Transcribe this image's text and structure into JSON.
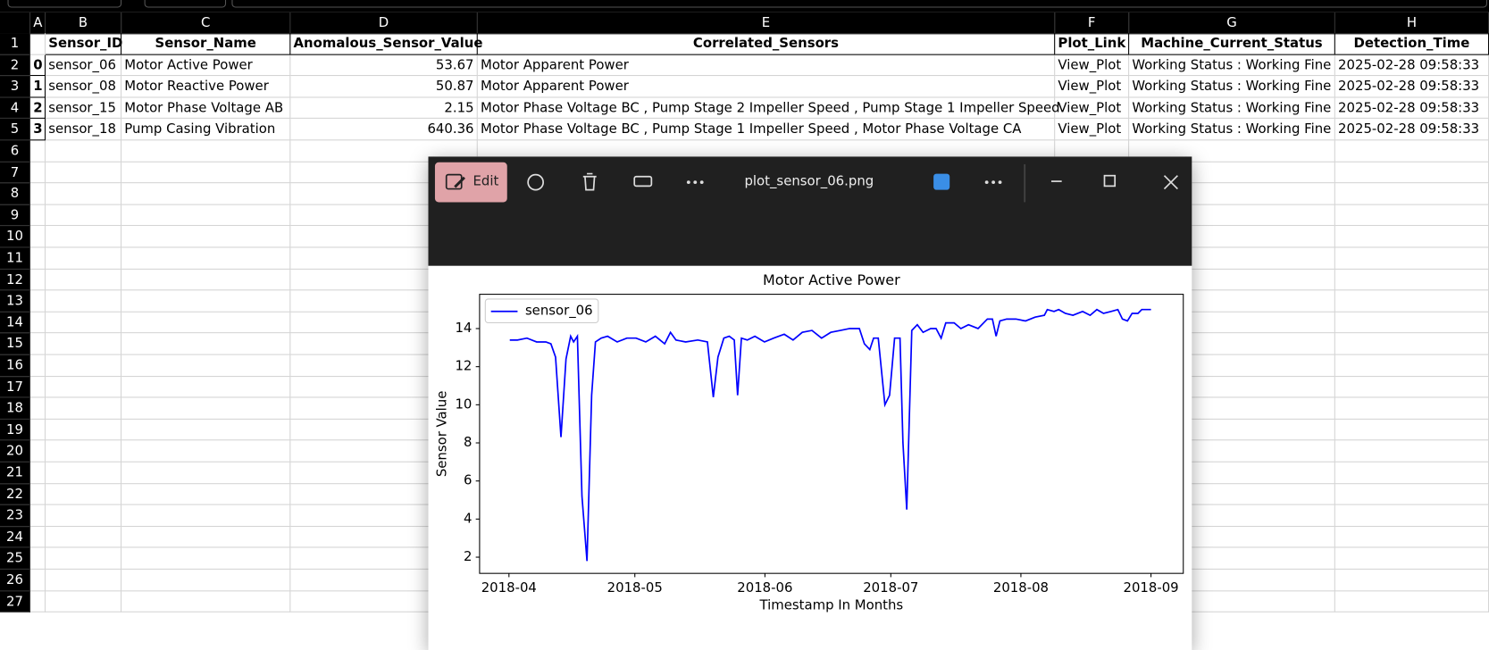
{
  "spreadsheet": {
    "columns": [
      "A",
      "B",
      "C",
      "D",
      "E",
      "F",
      "G",
      "H"
    ],
    "row_numbers": [
      1,
      2,
      3,
      4,
      5,
      6,
      7,
      8,
      9,
      10,
      11,
      12,
      13,
      14,
      15,
      16,
      17,
      18,
      19,
      20,
      21,
      22,
      23,
      24,
      25,
      26,
      27
    ],
    "header": [
      "Sensor_ID",
      "Sensor_Name",
      "Anomalous_Sensor_Value",
      "Correlated_Sensors",
      "Plot_Link",
      "Machine_Current_Status",
      "Detection_Time"
    ],
    "rows": [
      [
        0,
        "sensor_06",
        "Motor Active Power",
        53.67,
        "Motor Apparent Power",
        "View_Plot",
        "Working Status : Working Fine",
        "2025-02-28 09:58:33"
      ],
      [
        1,
        "sensor_08",
        "Motor Reactive Power",
        50.87,
        "Motor Apparent Power",
        "View_Plot",
        "Working Status : Working Fine",
        "2025-02-28 09:58:33"
      ],
      [
        2,
        "sensor_15",
        "Motor Phase Voltage AB",
        2.15,
        "Motor Phase Voltage BC , Pump Stage 2 Impeller Speed , Pump Stage 1 Impeller Speed",
        "View_Plot",
        "Working Status : Working Fine",
        "2025-02-28 09:58:33"
      ],
      [
        3,
        "sensor_18",
        "Pump Casing Vibration",
        640.36,
        "Motor Phase Voltage BC , Pump Stage 1 Impeller Speed , Motor Phase Voltage CA",
        "View_Plot",
        "Working Status : Working Fine",
        "2025-02-28 09:58:33"
      ]
    ]
  },
  "viewer": {
    "edit_button": "Edit",
    "file_name": "plot_sensor_06.png"
  },
  "chart_data": {
    "type": "line",
    "title": "Motor Active Power",
    "x_label": "Timestamp In Months",
    "y_label": "Sensor Value",
    "x": [
      0.2,
      2.0,
      4.3,
      6.6,
      8.8,
      10.0,
      11.1,
      12.4,
      13.6,
      14.7,
      15.4,
      16.3,
      17.4,
      18.6,
      19.7,
      20.6,
      22.0,
      23.5,
      25.8,
      28.1,
      30.3,
      32.6,
      34.9,
      37.1,
      38.5,
      39.8,
      42.1,
      45.0,
      47.3,
      48.7,
      49.8,
      51.2,
      52.5,
      53.7,
      54.5,
      55.4,
      56.8,
      58.6,
      60.9,
      63.1,
      65.6,
      67.7,
      69.9,
      72.2,
      74.5,
      76.7,
      79.0,
      81.2,
      83.5,
      84.7,
      86.0,
      86.9,
      88.0,
      89.6,
      90.7,
      91.9,
      93.2,
      93.9,
      94.8,
      96.0,
      97.3,
      98.7,
      100.5,
      101.8,
      103.0,
      104.1,
      106.1,
      107.7,
      109.5,
      111.8,
      114.0,
      115.2,
      116.1,
      117.0,
      118.6,
      120.8,
      123.1,
      125.4,
      127.6,
      128.3,
      129.9,
      131.0,
      132.6,
      134.4,
      136.7,
      138.5,
      140.1,
      141.7,
      143.5,
      145.1,
      146.2,
      147.4,
      148.5,
      149.9,
      150.8,
      153.0
    ],
    "series": [
      {
        "name": "sensor_06",
        "color": "#0000ff",
        "values": [
          13.4,
          13.4,
          13.5,
          13.3,
          13.3,
          13.2,
          12.5,
          8.3,
          12.4,
          13.6,
          13.3,
          13.6,
          5.2,
          1.8,
          10.5,
          13.3,
          13.5,
          13.6,
          13.3,
          13.5,
          13.5,
          13.3,
          13.6,
          13.2,
          13.8,
          13.4,
          13.3,
          13.4,
          13.3,
          10.4,
          12.5,
          13.5,
          13.6,
          13.4,
          10.5,
          13.5,
          13.4,
          13.6,
          13.3,
          13.5,
          13.7,
          13.4,
          13.8,
          13.9,
          13.5,
          13.8,
          13.9,
          14.0,
          14.0,
          13.2,
          12.9,
          13.5,
          13.5,
          10.0,
          10.5,
          13.5,
          13.5,
          8.0,
          4.5,
          13.9,
          14.2,
          13.8,
          14.0,
          14.0,
          13.5,
          14.3,
          14.3,
          14.0,
          14.2,
          14.0,
          14.5,
          14.5,
          13.6,
          14.4,
          14.5,
          14.5,
          14.4,
          14.6,
          14.7,
          15.0,
          14.9,
          15.0,
          14.8,
          14.7,
          14.9,
          14.7,
          15.0,
          14.8,
          14.9,
          15.0,
          14.5,
          14.4,
          14.8,
          14.8,
          15.0,
          15.0
        ]
      }
    ],
    "xlim": [
      -7.0,
      160.7
    ],
    "xticks": [
      {
        "value": 0,
        "label": "2018-04"
      },
      {
        "value": 30,
        "label": "2018-05"
      },
      {
        "value": 61,
        "label": "2018-06"
      },
      {
        "value": 91,
        "label": "2018-07"
      },
      {
        "value": 122,
        "label": "2018-08"
      },
      {
        "value": 153,
        "label": "2018-09"
      }
    ],
    "ylim": [
      1.15,
      15.8
    ],
    "yticks": [
      2,
      4,
      6,
      8,
      10,
      12,
      14
    ],
    "legend": "upper left",
    "grid": false
  }
}
